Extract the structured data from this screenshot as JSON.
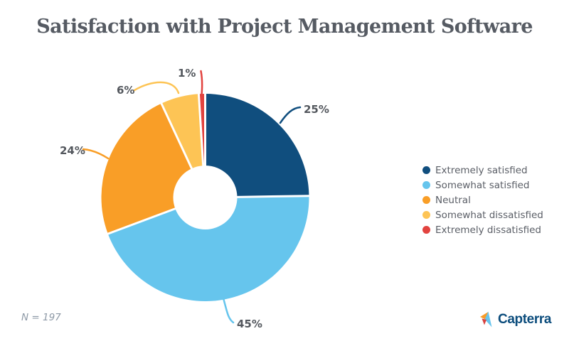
{
  "footer": {
    "sample_size_label": "N = 197",
    "brand": "Capterra"
  },
  "icons": {
    "brand_mark": "capterra-flag-icon"
  },
  "colors": {
    "background": "#FFFFFF",
    "title_text": "#565B63",
    "label_text": "#53575D",
    "legend_text": "#5A5E66",
    "sample_text": "#8D99A6",
    "brand_text": "#0B4C7C",
    "brand_icon_orange": "#F99B28",
    "brand_icon_blue": "#68C5ED",
    "brand_icon_red": "#D84340",
    "slice_separator": "#FFFFFF"
  },
  "chart_data": {
    "type": "pie",
    "title": "Satisfaction with Project Management Software",
    "donut": true,
    "start_angle": "top",
    "direction": "clockwise",
    "legend_position": "right",
    "sample_size": 197,
    "center": {
      "x": 288.5,
      "y": 278
    },
    "outer_radius": 146,
    "inner_radius": 45,
    "series": [
      {
        "label": "Extremely satisfied",
        "value": 25,
        "pct_label": "25%",
        "color": "#104E7E"
      },
      {
        "label": "Somewhat satisfied",
        "value": 45,
        "pct_label": "45%",
        "color": "#66C5ED"
      },
      {
        "label": "Neutral",
        "value": 24,
        "pct_label": "24%",
        "color": "#F99E27"
      },
      {
        "label": "Somewhat dissatisfied",
        "value": 6,
        "pct_label": "6%",
        "color": "#FDC455"
      },
      {
        "label": "Extremely dissatisfied",
        "value": 1,
        "pct_label": "1%",
        "color": "#E2433F"
      }
    ]
  }
}
